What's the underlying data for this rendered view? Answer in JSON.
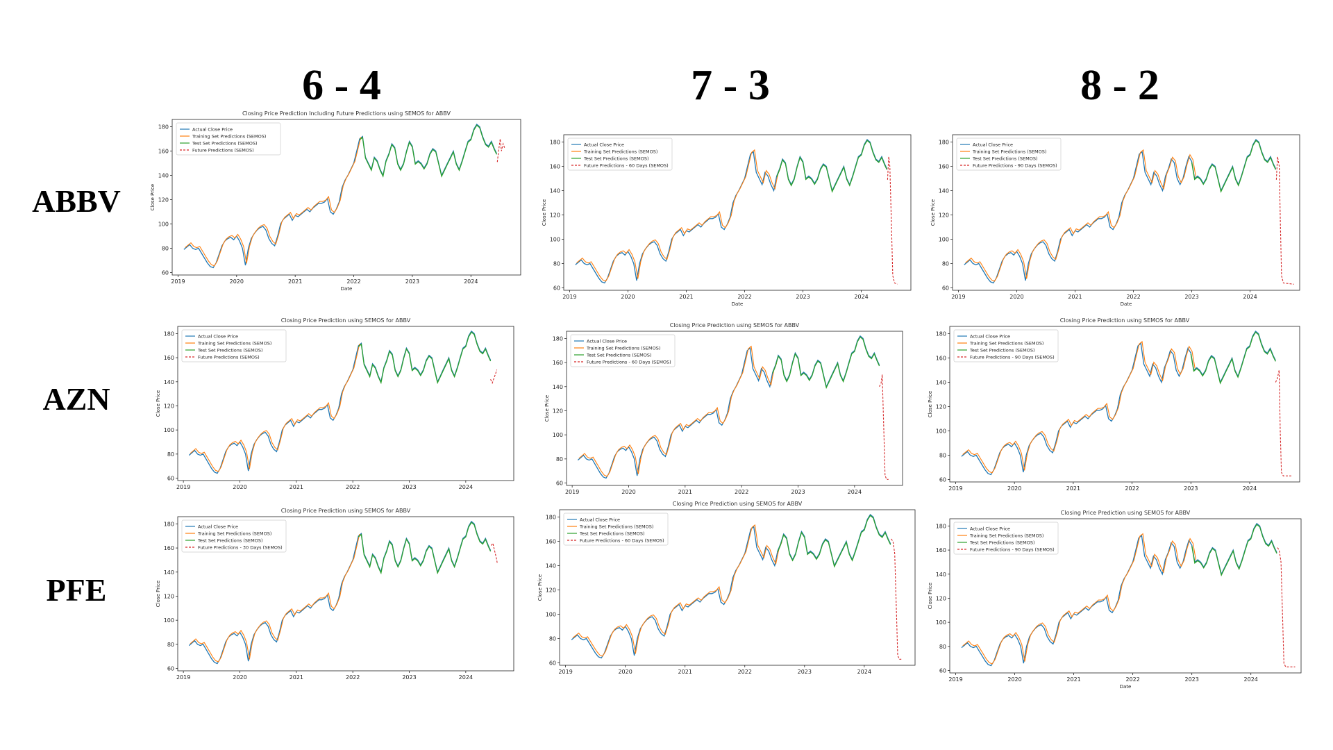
{
  "column_headers": [
    "6 - 4",
    "7 - 3",
    "8 - 2"
  ],
  "row_headers": [
    "ABBV",
    "AZN",
    "PFE"
  ],
  "chart_data": [
    {
      "type": "line",
      "row": "ABBV",
      "split": "6 - 4",
      "title": "Closing Price Prediction Including Future Predictions using SEMOS for ABBV",
      "xlabel": "Date",
      "ylabel": "Close Price",
      "ylim": [
        58,
        186
      ],
      "xlim": [
        2018.9,
        2024.85
      ],
      "x_ticks": [
        "2019",
        "2020",
        "2021",
        "2022",
        "2023",
        "2024"
      ],
      "y_ticks": [
        "60",
        "80",
        "100",
        "120",
        "140",
        "160",
        "180"
      ],
      "legend_placement": "top-left",
      "series": [
        {
          "name": "Actual Close Price",
          "color": "#1f77b4"
        },
        {
          "name": "Training Set Predictions (SEMOS)",
          "color": "#ff7f0e"
        },
        {
          "name": "Test Set Predictions (SEMOS)",
          "color": "#2ca02c"
        },
        {
          "name": "Future Predictions (SEMOS)",
          "color": "#d62728",
          "style": "dashed",
          "points": [
            [
              2024.45,
              151
            ],
            [
              2024.48,
              163
            ],
            [
              2024.5,
              170
            ],
            [
              2024.52,
              160
            ],
            [
              2024.55,
              166
            ],
            [
              2024.58,
              162
            ]
          ]
        }
      ],
      "test_start": 2022.1
    },
    {
      "type": "line",
      "row": "ABBV",
      "split": "7 - 3",
      "title": "",
      "xlabel": "Date",
      "ylabel": "Close Price",
      "ylim": [
        58,
        186
      ],
      "xlim": [
        2018.9,
        2024.85
      ],
      "x_ticks": [
        "2019",
        "2020",
        "2021",
        "2022",
        "2023",
        "2024"
      ],
      "y_ticks": [
        "60",
        "80",
        "100",
        "120",
        "140",
        "160",
        "180"
      ],
      "legend_placement": "top-left",
      "series": [
        {
          "name": "Actual Close Price",
          "color": "#1f77b4"
        },
        {
          "name": "Training Set Predictions (SEMOS)",
          "color": "#ff7f0e"
        },
        {
          "name": "Test Set Predictions (SEMOS)",
          "color": "#2ca02c"
        },
        {
          "name": "Future Predictions - 60 Days (SEMOS)",
          "color": "#d62728",
          "style": "dashed",
          "points": [
            [
              2024.45,
              149
            ],
            [
              2024.47,
              168
            ],
            [
              2024.49,
              160
            ],
            [
              2024.52,
              105
            ],
            [
              2024.54,
              70
            ],
            [
              2024.57,
              64
            ],
            [
              2024.62,
              63
            ]
          ]
        }
      ],
      "test_start": 2022.55
    },
    {
      "type": "line",
      "row": "ABBV",
      "split": "8 - 2",
      "title": "",
      "xlabel": "Date",
      "ylabel": "Close Price",
      "ylim": [
        58,
        186
      ],
      "xlim": [
        2018.9,
        2024.85
      ],
      "x_ticks": [
        "2019",
        "2020",
        "2021",
        "2022",
        "2023",
        "2024"
      ],
      "y_ticks": [
        "60",
        "80",
        "100",
        "120",
        "140",
        "160",
        "180"
      ],
      "legend_placement": "top-left",
      "series": [
        {
          "name": "Actual Close Price",
          "color": "#1f77b4"
        },
        {
          "name": "Training Set Predictions (SEMOS)",
          "color": "#ff7f0e"
        },
        {
          "name": "Test Set Predictions (SEMOS)",
          "color": "#2ca02c"
        },
        {
          "name": "Future Predictions - 90 Days (SEMOS)",
          "color": "#d62728",
          "style": "dashed",
          "points": [
            [
              2024.45,
              149
            ],
            [
              2024.47,
              168
            ],
            [
              2024.5,
              160
            ],
            [
              2024.52,
              110
            ],
            [
              2024.54,
              70
            ],
            [
              2024.57,
              64
            ],
            [
              2024.75,
              63
            ]
          ]
        }
      ],
      "test_start": 2023.0
    },
    {
      "type": "line",
      "row": "AZN",
      "split": "6 - 4",
      "title": "Closing Price Prediction using SEMOS for ABBV",
      "xlabel": "",
      "ylabel": "Close Price",
      "ylim": [
        58,
        186
      ],
      "xlim": [
        2018.9,
        2024.85
      ],
      "x_ticks": [
        "2019",
        "2020",
        "2021",
        "2022",
        "2023",
        "2024"
      ],
      "y_ticks": [
        "60",
        "80",
        "100",
        "120",
        "140",
        "160",
        "180"
      ],
      "legend_placement": "top-left",
      "series": [
        {
          "name": "Actual Close Price",
          "color": "#1f77b4"
        },
        {
          "name": "Training Set Predictions (SEMOS)",
          "color": "#ff7f0e"
        },
        {
          "name": "Test Set Predictions (SEMOS)",
          "color": "#2ca02c"
        },
        {
          "name": "Future Predictions (SEMOS)",
          "color": "#d62728",
          "style": "dashed",
          "points": [
            [
              2024.44,
              142
            ],
            [
              2024.47,
              139
            ],
            [
              2024.5,
              143
            ],
            [
              2024.53,
              147
            ],
            [
              2024.55,
              150
            ]
          ]
        }
      ],
      "test_start": 2022.1
    },
    {
      "type": "line",
      "row": "AZN",
      "split": "7 - 3",
      "title": "Closing Price Prediction using SEMOS for ABBV",
      "xlabel": "",
      "ylabel": "Close Price",
      "ylim": [
        58,
        186
      ],
      "xlim": [
        2018.9,
        2024.85
      ],
      "x_ticks": [
        "2019",
        "2020",
        "2021",
        "2022",
        "2023",
        "2024"
      ],
      "y_ticks": [
        "60",
        "80",
        "100",
        "120",
        "140",
        "160",
        "180"
      ],
      "legend_placement": "top-left",
      "series": [
        {
          "name": "Actual Close Price",
          "color": "#1f77b4"
        },
        {
          "name": "Training Set Predictions (SEMOS)",
          "color": "#ff7f0e"
        },
        {
          "name": "Test Set Predictions (SEMOS)",
          "color": "#2ca02c"
        },
        {
          "name": "Future Predictions - 60 Days (SEMOS)",
          "color": "#d62728",
          "style": "dashed",
          "points": [
            [
              2024.44,
              140
            ],
            [
              2024.47,
              143
            ],
            [
              2024.49,
              150
            ],
            [
              2024.52,
              100
            ],
            [
              2024.54,
              66
            ],
            [
              2024.57,
              63
            ],
            [
              2024.6,
              63
            ]
          ]
        }
      ],
      "test_start": 2022.55
    },
    {
      "type": "line",
      "row": "AZN",
      "split": "8 - 2",
      "title": "Closing Price Prediction using SEMOS for ABBV",
      "xlabel": "",
      "ylabel": "Close Price",
      "ylim": [
        58,
        186
      ],
      "xlim": [
        2018.9,
        2024.85
      ],
      "x_ticks": [
        "2019",
        "2020",
        "2021",
        "2022",
        "2023",
        "2024"
      ],
      "y_ticks": [
        "60",
        "80",
        "100",
        "120",
        "140",
        "160",
        "180"
      ],
      "legend_placement": "top-left",
      "series": [
        {
          "name": "Actual Close Price",
          "color": "#1f77b4"
        },
        {
          "name": "Training Set Predictions (SEMOS)",
          "color": "#ff7f0e"
        },
        {
          "name": "Test Set Predictions (SEMOS)",
          "color": "#2ca02c"
        },
        {
          "name": "Future Predictions - 90 Days (SEMOS)",
          "color": "#d62728",
          "style": "dashed",
          "points": [
            [
              2024.44,
              140
            ],
            [
              2024.47,
              143
            ],
            [
              2024.5,
              150
            ],
            [
              2024.52,
              100
            ],
            [
              2024.54,
              66
            ],
            [
              2024.57,
              63
            ],
            [
              2024.72,
              63
            ]
          ]
        }
      ],
      "test_start": 2023.0
    },
    {
      "type": "line",
      "row": "PFE",
      "split": "6 - 4",
      "title": "Closing Price Prediction using SEMOS for ABBV",
      "xlabel": "",
      "ylabel": "Close Price",
      "ylim": [
        58,
        186
      ],
      "xlim": [
        2018.9,
        2024.85
      ],
      "x_ticks": [
        "2019",
        "2020",
        "2021",
        "2022",
        "2023",
        "2024"
      ],
      "y_ticks": [
        "60",
        "80",
        "100",
        "120",
        "140",
        "160",
        "180"
      ],
      "legend_placement": "top-left",
      "series": [
        {
          "name": "Actual Close Price",
          "color": "#1f77b4"
        },
        {
          "name": "Training Set Predictions (SEMOS)",
          "color": "#ff7f0e"
        },
        {
          "name": "Test Set Predictions (SEMOS)",
          "color": "#2ca02c"
        },
        {
          "name": "Future Predictions - 30 Days (SEMOS)",
          "color": "#d62728",
          "style": "dashed",
          "points": [
            [
              2024.45,
              162
            ],
            [
              2024.48,
              164
            ],
            [
              2024.51,
              158
            ],
            [
              2024.54,
              152
            ],
            [
              2024.56,
              147
            ]
          ]
        }
      ],
      "test_start": 2022.1
    },
    {
      "type": "line",
      "row": "PFE",
      "split": "7 - 3",
      "title": "Closing Price Prediction using SEMOS for ABBV",
      "xlabel": "",
      "ylabel": "Close Price",
      "ylim": [
        58,
        186
      ],
      "xlim": [
        2018.9,
        2024.85
      ],
      "x_ticks": [
        "2019",
        "2020",
        "2021",
        "2022",
        "2023",
        "2024"
      ],
      "y_ticks": [
        "60",
        "80",
        "100",
        "120",
        "140",
        "160",
        "180"
      ],
      "legend_placement": "top-left",
      "series": [
        {
          "name": "Actual Close Price",
          "color": "#1f77b4"
        },
        {
          "name": "Training Set Predictions (SEMOS)",
          "color": "#ff7f0e"
        },
        {
          "name": "Test Set Predictions (SEMOS)",
          "color": "#2ca02c"
        },
        {
          "name": "Future Predictions - 60 Days (SEMOS)",
          "color": "#d62728",
          "style": "dashed",
          "points": [
            [
              2024.45,
              162
            ],
            [
              2024.48,
              160
            ],
            [
              2024.51,
              150
            ],
            [
              2024.54,
              100
            ],
            [
              2024.56,
              66
            ],
            [
              2024.59,
              63
            ],
            [
              2024.62,
              63
            ]
          ]
        }
      ],
      "test_start": 2022.55
    },
    {
      "type": "line",
      "row": "PFE",
      "split": "8 - 2",
      "title": "Closing Price Prediction using SEMOS for ABBV",
      "xlabel": "Date",
      "ylabel": "Close Price",
      "ylim": [
        58,
        186
      ],
      "xlim": [
        2018.9,
        2024.85
      ],
      "x_ticks": [
        "2019",
        "2020",
        "2021",
        "2022",
        "2023",
        "2024"
      ],
      "y_ticks": [
        "60",
        "80",
        "100",
        "120",
        "140",
        "160",
        "180"
      ],
      "legend_placement": "top-left",
      "series": [
        {
          "name": "Actual Close Price",
          "color": "#1f77b4"
        },
        {
          "name": "Training Set Predictions (SEMOS)",
          "color": "#ff7f0e"
        },
        {
          "name": "Test Set Predictions (SEMOS)",
          "color": "#2ca02c"
        },
        {
          "name": "Future Predictions - 90 Days (SEMOS)",
          "color": "#d62728",
          "style": "dashed",
          "points": [
            [
              2024.45,
              162
            ],
            [
              2024.48,
              160
            ],
            [
              2024.51,
              150
            ],
            [
              2024.54,
              100
            ],
            [
              2024.56,
              66
            ],
            [
              2024.59,
              63
            ],
            [
              2024.75,
              63
            ]
          ]
        }
      ],
      "test_start": 2023.0
    }
  ],
  "close_price_series": {
    "x": [
      2019.1,
      2019.15,
      2019.2,
      2019.25,
      2019.3,
      2019.35,
      2019.4,
      2019.45,
      2019.5,
      2019.55,
      2019.6,
      2019.65,
      2019.7,
      2019.75,
      2019.8,
      2019.85,
      2019.9,
      2019.95,
      2020.0,
      2020.05,
      2020.1,
      2020.15,
      2020.2,
      2020.25,
      2020.3,
      2020.35,
      2020.4,
      2020.45,
      2020.5,
      2020.55,
      2020.6,
      2020.65,
      2020.7,
      2020.75,
      2020.8,
      2020.85,
      2020.9,
      2020.95,
      2021.0,
      2021.05,
      2021.1,
      2021.15,
      2021.2,
      2021.25,
      2021.3,
      2021.35,
      2021.4,
      2021.45,
      2021.5,
      2021.55,
      2021.6,
      2021.65,
      2021.7,
      2021.75,
      2021.8,
      2021.85,
      2021.9,
      2021.95,
      2022.0,
      2022.05,
      2022.1,
      2022.15,
      2022.2,
      2022.25,
      2022.3,
      2022.35,
      2022.4,
      2022.45,
      2022.5,
      2022.55,
      2022.6,
      2022.65,
      2022.7,
      2022.75,
      2022.8,
      2022.85,
      2022.9,
      2022.95,
      2023.0,
      2023.05,
      2023.1,
      2023.15,
      2023.2,
      2023.25,
      2023.3,
      2023.35,
      2023.4,
      2023.45,
      2023.5,
      2023.55,
      2023.6,
      2023.65,
      2023.7,
      2023.75,
      2023.8,
      2023.85,
      2023.9,
      2023.95,
      2024.0,
      2024.05,
      2024.1,
      2024.15,
      2024.2,
      2024.25,
      2024.3,
      2024.35,
      2024.4,
      2024.44
    ],
    "y": [
      79,
      81,
      83,
      80,
      79,
      80,
      76,
      72,
      68,
      65,
      64,
      68,
      75,
      82,
      86,
      88,
      89,
      87,
      90,
      86,
      80,
      66,
      80,
      88,
      92,
      95,
      97,
      98,
      95,
      88,
      84,
      82,
      90,
      100,
      104,
      106,
      108,
      103,
      107,
      106,
      108,
      110,
      112,
      110,
      113,
      115,
      117,
      117,
      118,
      121,
      110,
      108,
      112,
      118,
      130,
      136,
      140,
      145,
      150,
      160,
      170,
      172,
      155,
      150,
      145,
      155,
      152,
      145,
      140,
      152,
      158,
      166,
      163,
      150,
      145,
      150,
      160,
      168,
      164,
      150,
      152,
      150,
      146,
      150,
      158,
      162,
      160,
      150,
      140,
      145,
      150,
      155,
      160,
      150,
      145,
      152,
      160,
      168,
      170,
      178,
      182,
      180,
      172,
      166,
      164,
      168,
      162,
      158
    ]
  }
}
